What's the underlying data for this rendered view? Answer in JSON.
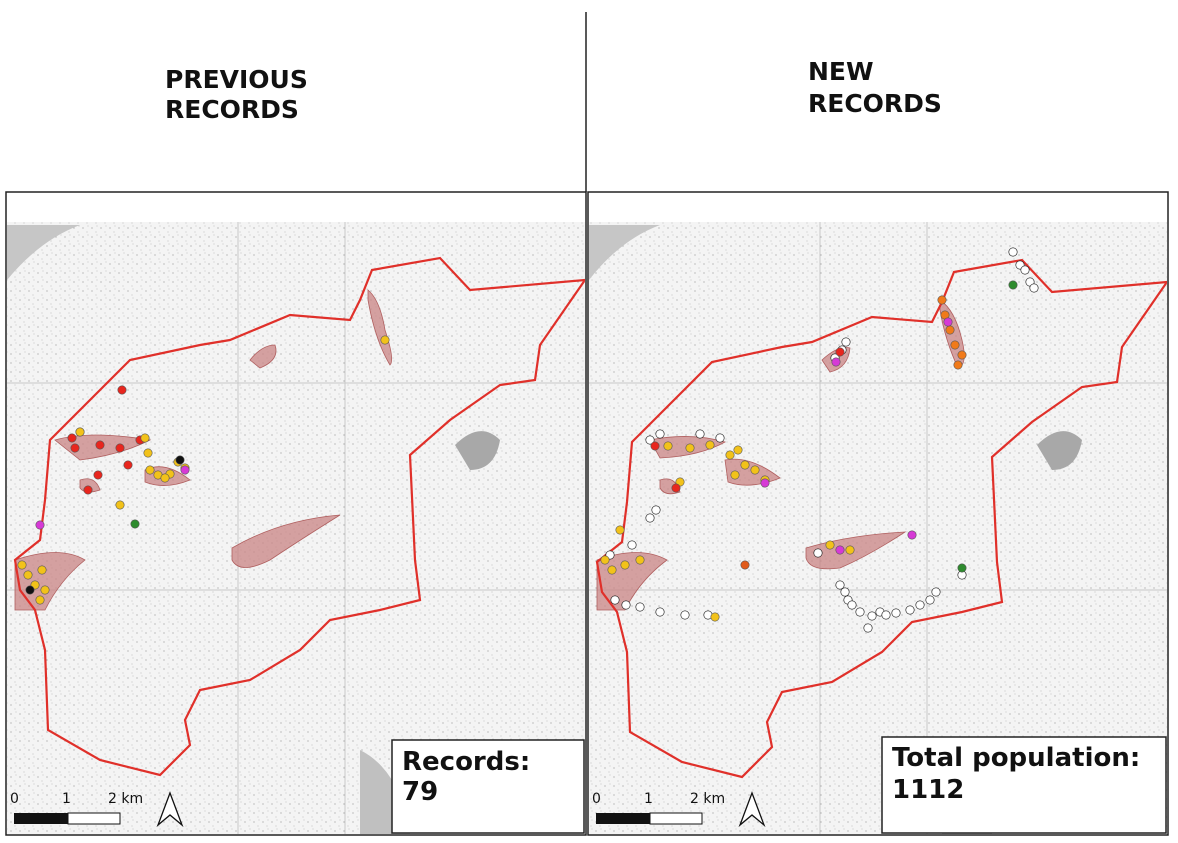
{
  "panels": [
    {
      "title_lines": [
        "PREVIOUS",
        "RECORDS"
      ],
      "box_label": "Records:",
      "box_value": "79",
      "scale_labels": [
        "0",
        "1",
        "2 km"
      ]
    },
    {
      "title_lines": [
        "NEW",
        "RECORDS"
      ],
      "box_label": "Total population:",
      "box_value": "1112",
      "scale_labels": [
        "0",
        "1",
        "2 km"
      ]
    }
  ]
}
